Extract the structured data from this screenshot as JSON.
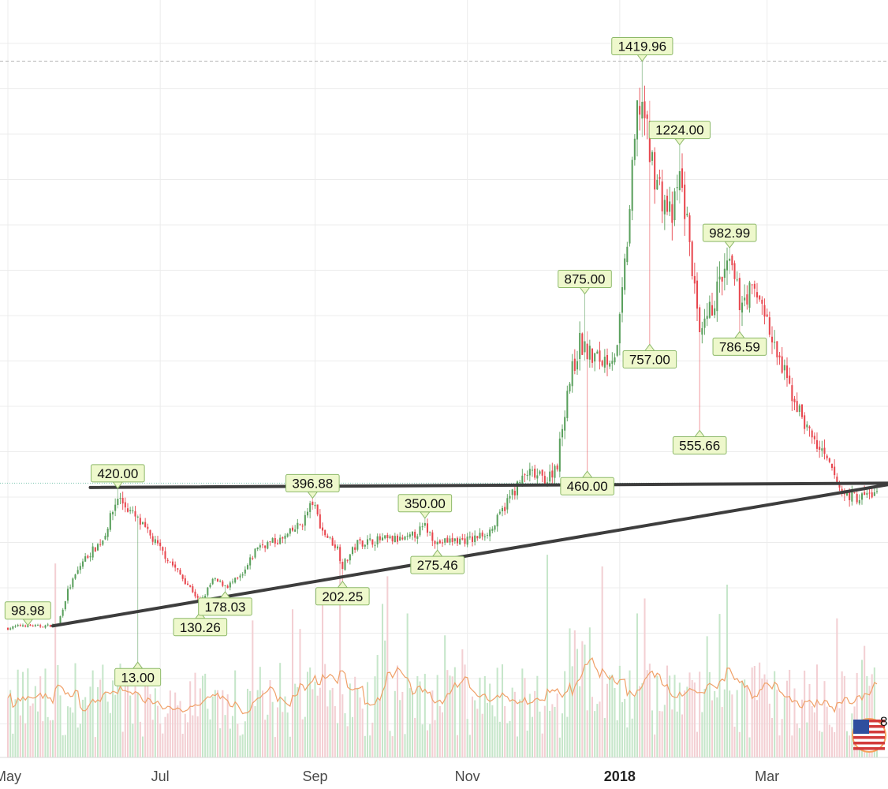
{
  "chart_data": {
    "type": "candlestick",
    "title": "",
    "xlabel": "",
    "ylabel": "",
    "y_axis_visible": false,
    "grid": true,
    "colors": {
      "up": "#5aa05d",
      "down": "#e8474f",
      "vol_up": "#c6e6ca",
      "vol_down": "#f3cfd3",
      "volume_ma": "#f0a068",
      "trendline": "#3d3d3d",
      "label_fill": "#eef8cc",
      "label_border": "#8db96a",
      "grid": "#ececec"
    },
    "x_ticks": [
      {
        "label": "May",
        "day": 0,
        "bold": false
      },
      {
        "label": "Jul",
        "day": 61,
        "bold": false
      },
      {
        "label": "Sep",
        "day": 123,
        "bold": false
      },
      {
        "label": "Nov",
        "day": 184,
        "bold": false
      },
      {
        "label": "2018",
        "day": 245,
        "bold": true
      },
      {
        "label": "Mar",
        "day": 304,
        "bold": false
      }
    ],
    "price_labels": [
      {
        "text": "98.98",
        "day": 8,
        "value": 98.98,
        "side": "above"
      },
      {
        "text": "420.00",
        "day": 44,
        "value": 420.0,
        "side": "above"
      },
      {
        "text": "13.00",
        "day": 52,
        "value": 13.0,
        "side": "below"
      },
      {
        "text": "130.26",
        "day": 77,
        "value": 130.26,
        "side": "below"
      },
      {
        "text": "178.03",
        "day": 87,
        "value": 178.03,
        "side": "below"
      },
      {
        "text": "396.88",
        "day": 122,
        "value": 396.88,
        "side": "above"
      },
      {
        "text": "202.25",
        "day": 134,
        "value": 202.25,
        "side": "below"
      },
      {
        "text": "350.00",
        "day": 167,
        "value": 350.0,
        "side": "above"
      },
      {
        "text": "275.46",
        "day": 172,
        "value": 275.46,
        "side": "below"
      },
      {
        "text": "875.00",
        "day": 231,
        "value": 875.0,
        "side": "above"
      },
      {
        "text": "460.00",
        "day": 232,
        "value": 460.0,
        "side": "below"
      },
      {
        "text": "1419.96",
        "day": 254,
        "value": 1419.96,
        "side": "above"
      },
      {
        "text": "757.00",
        "day": 257,
        "value": 757.0,
        "side": "below"
      },
      {
        "text": "1224.00",
        "day": 269,
        "value": 1224.0,
        "side": "above"
      },
      {
        "text": "555.66",
        "day": 277,
        "value": 555.66,
        "side": "below"
      },
      {
        "text": "982.99",
        "day": 289,
        "value": 982.99,
        "side": "above"
      },
      {
        "text": "786.59",
        "day": 293,
        "value": 786.59,
        "side": "below"
      }
    ],
    "trendlines": [
      {
        "name": "horizontal-resistance",
        "from": {
          "day": 33,
          "value": 422
        },
        "to": {
          "day": 348,
          "value": 432
        }
      },
      {
        "name": "rising-support",
        "from": {
          "day": 18,
          "value": 98
        },
        "to": {
          "day": 348,
          "value": 425
        }
      }
    ],
    "anchor_points": [
      [
        0,
        92
      ],
      [
        6,
        100
      ],
      [
        12,
        97
      ],
      [
        20,
        100
      ],
      [
        24,
        180
      ],
      [
        30,
        250
      ],
      [
        38,
        300
      ],
      [
        44,
        400
      ],
      [
        52,
        345
      ],
      [
        58,
        300
      ],
      [
        66,
        240
      ],
      [
        74,
        180
      ],
      [
        77,
        150
      ],
      [
        82,
        205
      ],
      [
        88,
        192
      ],
      [
        94,
        215
      ],
      [
        100,
        285
      ],
      [
        110,
        300
      ],
      [
        118,
        340
      ],
      [
        122,
        388
      ],
      [
        126,
        320
      ],
      [
        132,
        280
      ],
      [
        134,
        238
      ],
      [
        140,
        292
      ],
      [
        150,
        300
      ],
      [
        160,
        300
      ],
      [
        167,
        330
      ],
      [
        172,
        292
      ],
      [
        178,
        298
      ],
      [
        186,
        300
      ],
      [
        194,
        325
      ],
      [
        202,
        410
      ],
      [
        208,
        455
      ],
      [
        216,
        440
      ],
      [
        220,
        480
      ],
      [
        224,
        650
      ],
      [
        229,
        760
      ],
      [
        233,
        730
      ],
      [
        238,
        720
      ],
      [
        244,
        740
      ],
      [
        248,
        1000
      ],
      [
        252,
        1300
      ],
      [
        254,
        1330
      ],
      [
        257,
        1200
      ],
      [
        262,
        1100
      ],
      [
        266,
        1050
      ],
      [
        269,
        1150
      ],
      [
        273,
        1000
      ],
      [
        277,
        760
      ],
      [
        281,
        830
      ],
      [
        285,
        900
      ],
      [
        289,
        940
      ],
      [
        293,
        860
      ],
      [
        297,
        880
      ],
      [
        302,
        860
      ],
      [
        306,
        760
      ],
      [
        310,
        700
      ],
      [
        314,
        640
      ],
      [
        320,
        560
      ],
      [
        326,
        500
      ],
      [
        330,
        460
      ],
      [
        334,
        410
      ],
      [
        340,
        398
      ],
      [
        348,
        410
      ]
    ],
    "x_domain_days": [
      0,
      348
    ],
    "y_domain": [
      -210,
      1480
    ],
    "dashed_line_value": 1419.96,
    "current_value_line": 432,
    "corner_text": "8"
  }
}
